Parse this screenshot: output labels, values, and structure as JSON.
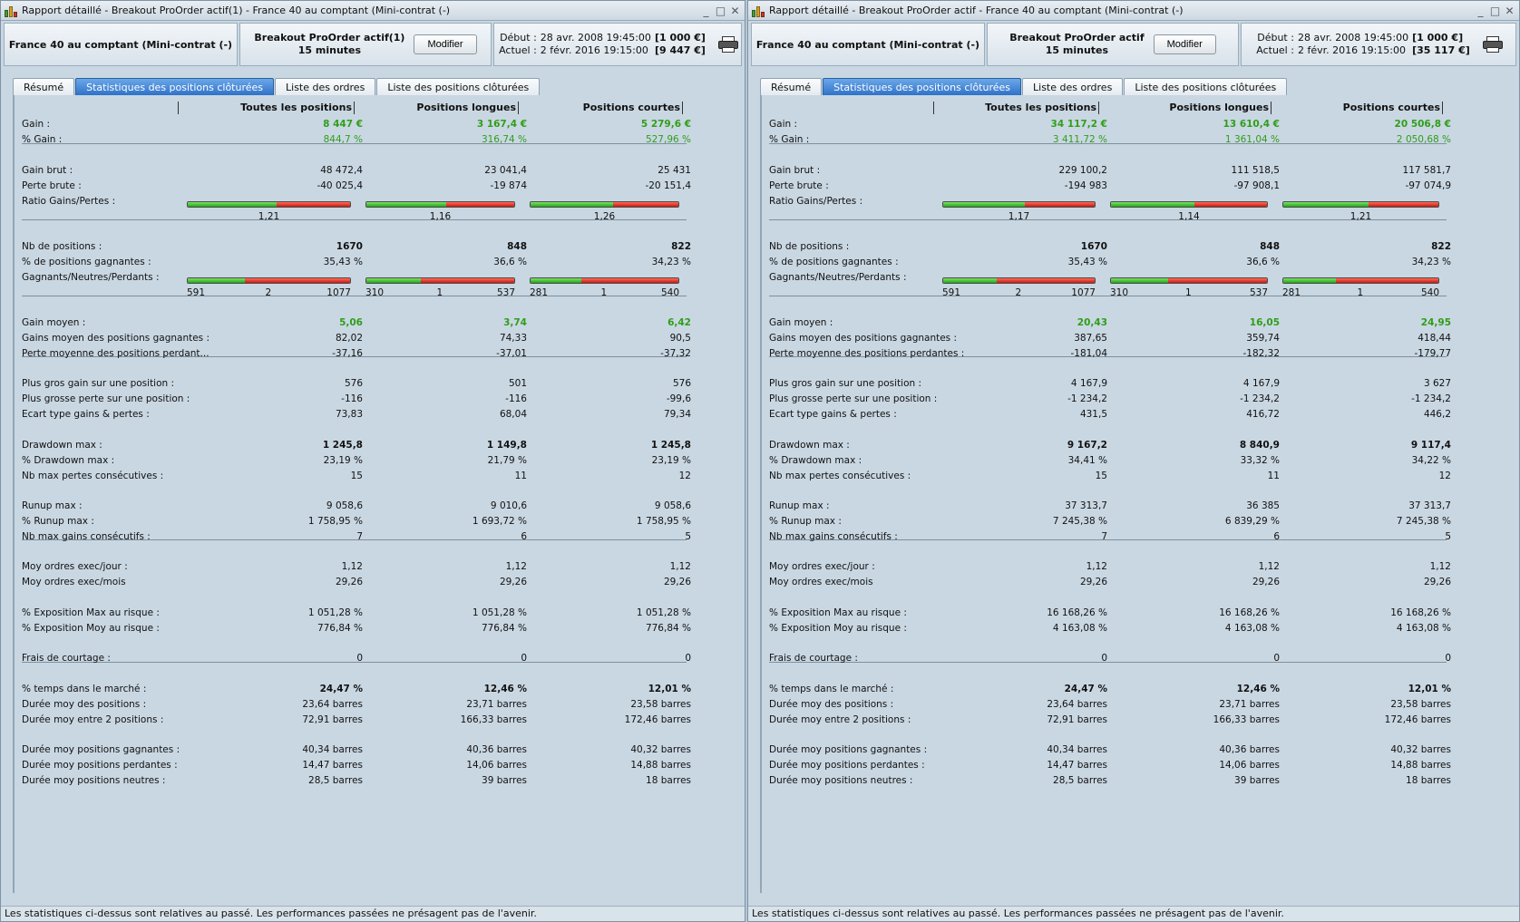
{
  "shared": {
    "status_text": "Les statistiques ci-dessus sont relatives au passé. Les performances passées ne présagent pas de l'avenir.",
    "instrument": "France 40 au comptant (Mini-contrat  (-)",
    "timeframe": "15 minutes",
    "modify_label": "Modifier",
    "debut_label": "Début :",
    "actuel_label": "Actuel :",
    "debut_date": "28 avr. 2008 19:45:00",
    "actuel_date": "2 févr. 2016 19:15:00",
    "tabs": [
      "Résumé",
      "Statistiques des positions clôturées",
      "Liste des ordres",
      "Liste des positions clôturées"
    ],
    "active_tab": 1,
    "col_headers": [
      "Toutes les positions",
      "Positions longues",
      "Positions courtes"
    ],
    "colors": {
      "green": "#2f9e1a",
      "tab_active": "#3a7fd3",
      "bar_green": "#1faa14",
      "bar_red": "#c81b10"
    }
  },
  "windows": [
    {
      "title": "Rapport détaillé - Breakout ProOrder actif(1) - France 40 au comptant (Mini-contrat  (-)",
      "strategy": "Breakout ProOrder actif(1)",
      "capital_start": "[1 000 €]",
      "capital_now": "[9 447 €]",
      "rows": [
        {
          "label": "Gain :",
          "values": [
            "8 447 €",
            "3 167,4 €",
            "5 279,6 €"
          ],
          "green": true,
          "bold": true
        },
        {
          "label": "% Gain :",
          "values": [
            "844,7 %",
            "316,74 %",
            "527,96 %"
          ],
          "green": true
        },
        {
          "label": "Gain brut :",
          "values": [
            "48 472,4",
            "23 041,4",
            "25 431"
          ]
        },
        {
          "label": "Perte brute :",
          "values": [
            "-40 025,4",
            "-19 874",
            "-20 151,4"
          ]
        },
        {
          "label": "Ratio Gains/Pertes :",
          "values": [
            "",
            "",
            ""
          ]
        },
        {
          "label": "Nb de positions :",
          "values": [
            "1670",
            "848",
            "822"
          ],
          "bold": true
        },
        {
          "label": "% de positions gagnantes :",
          "values": [
            "35,43 %",
            "36,6 %",
            "34,23 %"
          ]
        },
        {
          "label": "Gagnants/Neutres/Perdants :",
          "values": [
            "",
            "",
            ""
          ]
        },
        {
          "label": "Gain moyen :",
          "values": [
            "5,06",
            "3,74",
            "6,42"
          ],
          "green": true,
          "bold": true
        },
        {
          "label": "Gains moyen des positions gagnantes :",
          "values": [
            "82,02",
            "74,33",
            "90,5"
          ]
        },
        {
          "label": "Perte moyenne des positions perdant...",
          "values": [
            "-37,16",
            "-37,01",
            "-37,32"
          ]
        },
        {
          "label": "Plus gros gain sur une position :",
          "values": [
            "576",
            "501",
            "576"
          ]
        },
        {
          "label": "Plus grosse perte sur une position :",
          "values": [
            "-116",
            "-116",
            "-99,6"
          ]
        },
        {
          "label": "Ecart type gains & pertes :",
          "values": [
            "73,83",
            "68,04",
            "79,34"
          ]
        },
        {
          "label": "Drawdown max :",
          "values": [
            "1 245,8",
            "1 149,8",
            "1 245,8"
          ],
          "bold": true
        },
        {
          "label": "% Drawdown max :",
          "values": [
            "23,19 %",
            "21,79 %",
            "23,19 %"
          ]
        },
        {
          "label": "Nb max pertes consécutives :",
          "values": [
            "15",
            "11",
            "12"
          ]
        },
        {
          "label": "Runup max :",
          "values": [
            "9 058,6",
            "9 010,6",
            "9 058,6"
          ]
        },
        {
          "label": "% Runup max :",
          "values": [
            "1 758,95 %",
            "1 693,72 %",
            "1 758,95 %"
          ]
        },
        {
          "label": "Nb max gains consécutifs :",
          "values": [
            "7",
            "6",
            "5"
          ]
        },
        {
          "label": "Moy ordres exec/jour :",
          "values": [
            "1,12",
            "1,12",
            "1,12"
          ]
        },
        {
          "label": "Moy ordres exec/mois",
          "values": [
            "29,26",
            "29,26",
            "29,26"
          ]
        },
        {
          "label": "% Exposition Max au risque :",
          "values": [
            "1 051,28 %",
            "1 051,28 %",
            "1 051,28 %"
          ]
        },
        {
          "label": "% Exposition Moy au risque :",
          "values": [
            "776,84 %",
            "776,84 %",
            "776,84 %"
          ]
        },
        {
          "label": "Frais de courtage :",
          "values": [
            "0",
            "0",
            "0"
          ]
        },
        {
          "label": "% temps dans le marché :",
          "values": [
            "24,47 %",
            "12,46 %",
            "12,01 %"
          ],
          "bold": true
        },
        {
          "label": "Durée moy des positions :",
          "values": [
            "23,64 barres",
            "23,71 barres",
            "23,58 barres"
          ]
        },
        {
          "label": "Durée moy entre 2 positions :",
          "values": [
            "72,91 barres",
            "166,33 barres",
            "172,46 barres"
          ]
        },
        {
          "label": "Durée moy positions gagnantes :",
          "values": [
            "40,34 barres",
            "40,36 barres",
            "40,32 barres"
          ]
        },
        {
          "label": "Durée moy positions perdantes :",
          "values": [
            "14,47 barres",
            "14,06 barres",
            "14,88 barres"
          ]
        },
        {
          "label": "Durée moy positions neutres :",
          "values": [
            "28,5 barres",
            "39 barres",
            "18 barres"
          ]
        }
      ],
      "ratio_text": [
        "1,21",
        "1,16",
        "1,26"
      ],
      "ratio_fraction": [
        0.548,
        0.537,
        0.558
      ],
      "gnp": [
        [
          "591",
          "2",
          "1077"
        ],
        [
          "310",
          "1",
          "537"
        ],
        [
          "281",
          "1",
          "540"
        ]
      ],
      "gnp_fraction": [
        0.354,
        0.366,
        0.342
      ]
    },
    {
      "title": "Rapport détaillé - Breakout ProOrder actif - France 40 au comptant (Mini-contrat  (-)",
      "strategy": "Breakout ProOrder actif",
      "capital_start": "[1 000 €]",
      "capital_now": "[35 117 €]",
      "rows": [
        {
          "label": "Gain :",
          "values": [
            "34 117,2 €",
            "13 610,4 €",
            "20 506,8 €"
          ],
          "green": true,
          "bold": true
        },
        {
          "label": "% Gain :",
          "values": [
            "3 411,72 %",
            "1 361,04 %",
            "2 050,68 %"
          ],
          "green": true
        },
        {
          "label": "Gain brut :",
          "values": [
            "229 100,2",
            "111 518,5",
            "117 581,7"
          ]
        },
        {
          "label": "Perte brute :",
          "values": [
            "-194 983",
            "-97 908,1",
            "-97 074,9"
          ]
        },
        {
          "label": "Ratio Gains/Pertes :",
          "values": [
            "",
            "",
            ""
          ]
        },
        {
          "label": "Nb de positions :",
          "values": [
            "1670",
            "848",
            "822"
          ],
          "bold": true
        },
        {
          "label": "% de positions gagnantes :",
          "values": [
            "35,43 %",
            "36,6 %",
            "34,23 %"
          ]
        },
        {
          "label": "Gagnants/Neutres/Perdants :",
          "values": [
            "",
            "",
            ""
          ]
        },
        {
          "label": "Gain moyen :",
          "values": [
            "20,43",
            "16,05",
            "24,95"
          ],
          "green": true,
          "bold": true
        },
        {
          "label": "Gains moyen des positions gagnantes :",
          "values": [
            "387,65",
            "359,74",
            "418,44"
          ]
        },
        {
          "label": "Perte moyenne des positions perdantes :",
          "values": [
            "-181,04",
            "-182,32",
            "-179,77"
          ]
        },
        {
          "label": "Plus gros gain sur une position :",
          "values": [
            "4 167,9",
            "4 167,9",
            "3 627"
          ]
        },
        {
          "label": "Plus grosse perte sur une position :",
          "values": [
            "-1 234,2",
            "-1 234,2",
            "-1 234,2"
          ]
        },
        {
          "label": "Ecart type gains & pertes :",
          "values": [
            "431,5",
            "416,72",
            "446,2"
          ]
        },
        {
          "label": "Drawdown max :",
          "values": [
            "9 167,2",
            "8 840,9",
            "9 117,4"
          ],
          "bold": true
        },
        {
          "label": "% Drawdown max :",
          "values": [
            "34,41 %",
            "33,32 %",
            "34,22 %"
          ]
        },
        {
          "label": "Nb max pertes consécutives :",
          "values": [
            "15",
            "11",
            "12"
          ]
        },
        {
          "label": "Runup max :",
          "values": [
            "37 313,7",
            "36 385",
            "37 313,7"
          ]
        },
        {
          "label": "% Runup max :",
          "values": [
            "7 245,38 %",
            "6 839,29 %",
            "7 245,38 %"
          ]
        },
        {
          "label": "Nb max gains consécutifs :",
          "values": [
            "7",
            "6",
            "5"
          ]
        },
        {
          "label": "Moy ordres exec/jour :",
          "values": [
            "1,12",
            "1,12",
            "1,12"
          ]
        },
        {
          "label": "Moy ordres exec/mois",
          "values": [
            "29,26",
            "29,26",
            "29,26"
          ]
        },
        {
          "label": "% Exposition Max au risque :",
          "values": [
            "16 168,26 %",
            "16 168,26 %",
            "16 168,26 %"
          ]
        },
        {
          "label": "% Exposition Moy au risque :",
          "values": [
            "4 163,08 %",
            "4 163,08 %",
            "4 163,08 %"
          ]
        },
        {
          "label": "Frais de courtage :",
          "values": [
            "0",
            "0",
            "0"
          ]
        },
        {
          "label": "% temps dans le marché :",
          "values": [
            "24,47 %",
            "12,46 %",
            "12,01 %"
          ],
          "bold": true
        },
        {
          "label": "Durée moy des positions :",
          "values": [
            "23,64 barres",
            "23,71 barres",
            "23,58 barres"
          ]
        },
        {
          "label": "Durée moy entre 2 positions :",
          "values": [
            "72,91 barres",
            "166,33 barres",
            "172,46 barres"
          ]
        },
        {
          "label": "Durée moy positions gagnantes :",
          "values": [
            "40,34 barres",
            "40,36 barres",
            "40,32 barres"
          ]
        },
        {
          "label": "Durée moy positions perdantes :",
          "values": [
            "14,47 barres",
            "14,06 barres",
            "14,88 barres"
          ]
        },
        {
          "label": "Durée moy positions neutres :",
          "values": [
            "28,5 barres",
            "39 barres",
            "18 barres"
          ]
        }
      ],
      "ratio_text": [
        "1,17",
        "1,14",
        "1,21"
      ],
      "ratio_fraction": [
        0.54,
        0.533,
        0.548
      ],
      "gnp": [
        [
          "591",
          "2",
          "1077"
        ],
        [
          "310",
          "1",
          "537"
        ],
        [
          "281",
          "1",
          "540"
        ]
      ],
      "gnp_fraction": [
        0.354,
        0.366,
        0.342
      ]
    }
  ]
}
